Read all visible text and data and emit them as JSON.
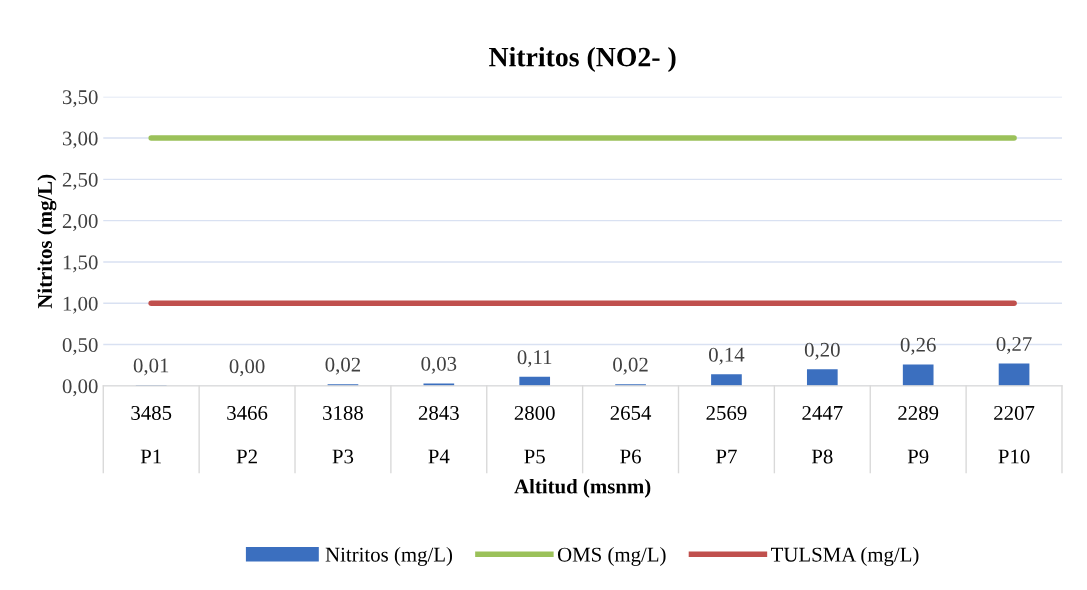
{
  "chart_data": {
    "type": "bar",
    "title": "Nitritos (NO2- )",
    "xlabel": "Altitud (msnm)",
    "ylabel": "Nitritos (mg/L)",
    "categories": [
      "3485\n\nP1",
      "3466\n\nP2",
      "3188\n\nP3",
      "2843\n\nP4",
      "2800\n\nP5",
      "2654\n\nP6",
      "2569\n\nP7",
      "2447\n\nP8",
      "2289\n\nP9",
      "2207\n\nP10"
    ],
    "series": [
      {
        "name": "Nitritos (mg/L)",
        "color": "#3b6fbf",
        "values": [
          0.01,
          0.0,
          0.02,
          0.03,
          0.11,
          0.02,
          0.14,
          0.2,
          0.26,
          0.27
        ],
        "value_labels": [
          "0,01",
          "0,00",
          "0,02",
          "0,03",
          "0,11",
          "0,02",
          "0,14",
          "0,20",
          "0,26",
          "0,27"
        ]
      },
      {
        "name": "OMS (mg/L)",
        "type": "line",
        "color": "#9bc15a",
        "values": [
          3.0,
          3.0,
          3.0,
          3.0,
          3.0,
          3.0,
          3.0,
          3.0,
          3.0,
          3.0
        ]
      },
      {
        "name": "TULSMA (mg/L)",
        "type": "line",
        "color": "#c0504d",
        "values": [
          1.0,
          1.0,
          1.0,
          1.0,
          1.0,
          1.0,
          1.0,
          1.0,
          1.0,
          1.0
        ]
      }
    ],
    "ylim": [
      0,
      3.5
    ],
    "yticks": [
      {
        "value": 0,
        "label": "0,00"
      },
      {
        "value": 0.5,
        "label": "0,50"
      },
      {
        "value": 1,
        "label": "1,00"
      },
      {
        "value": 1.5,
        "label": "1,50"
      },
      {
        "value": 2,
        "label": "2,00"
      },
      {
        "value": 2.5,
        "label": "2,50"
      },
      {
        "value": 3,
        "label": "3,00"
      },
      {
        "value": 3.5,
        "label": "3,50"
      }
    ],
    "grid": "y",
    "legend": "bottom",
    "marker": "none",
    "line_style": "solid"
  }
}
